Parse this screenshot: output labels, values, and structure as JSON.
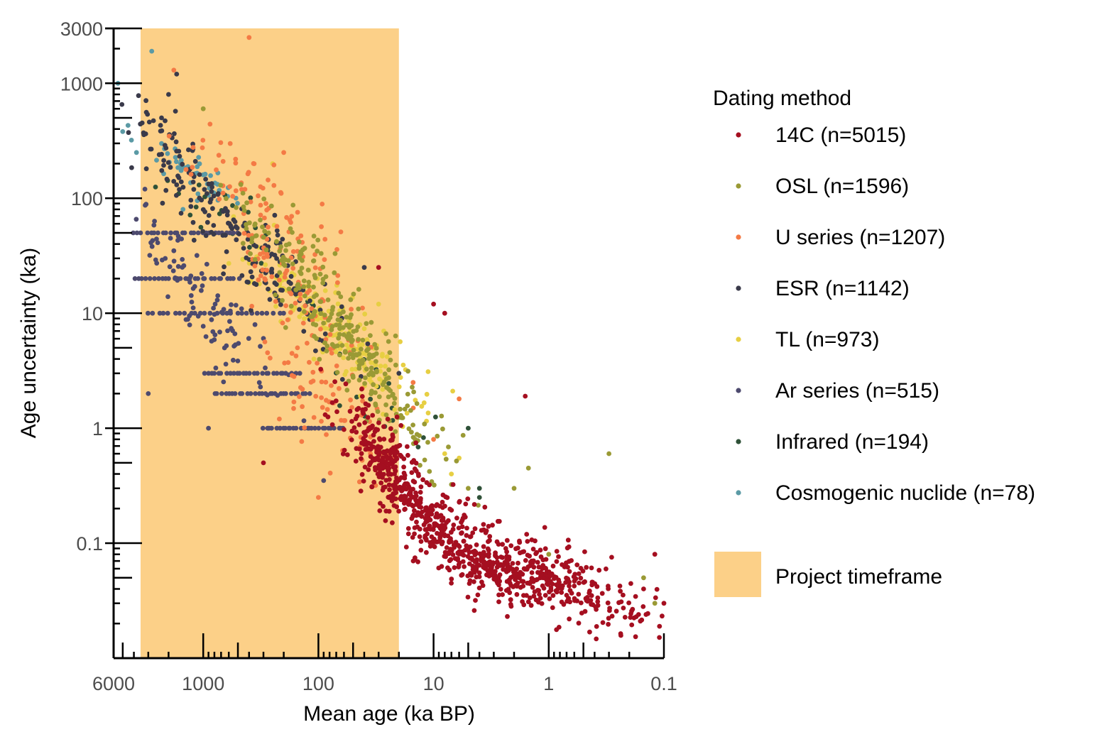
{
  "chart_data": {
    "type": "scatter",
    "xlabel": "Mean age (ka BP)",
    "ylabel": "Age uncertainty (ka)",
    "x_scale": "log",
    "x_reversed": true,
    "y_scale": "log",
    "xlim": [
      6000,
      0.1
    ],
    "ylim": [
      0.01,
      3000
    ],
    "x_ticks": [
      6000,
      1000,
      100,
      10,
      1,
      0.1
    ],
    "x_tick_labels": [
      "6000",
      "1000",
      "100",
      "10",
      "1",
      "0.1"
    ],
    "y_ticks": [
      3000,
      1000,
      100,
      10,
      1,
      0.1
    ],
    "y_tick_labels": [
      "3000",
      "1000",
      "100",
      "10",
      "1",
      "0.1"
    ],
    "grid": false,
    "legend_position": "right",
    "legend_title": "Dating method",
    "shaded_region": {
      "label": "Project timeframe",
      "x_from": 3500,
      "x_to": 20,
      "color": "#fcd088"
    },
    "series": [
      {
        "name": "14C (n=5015)",
        "color": "#a50f20",
        "n": 5015,
        "clusters": [
          {
            "x": 25,
            "y": 0.5,
            "spread_x": 0.2,
            "spread_y": 0.3
          },
          {
            "x": 10,
            "y": 0.15,
            "spread_x": 0.3,
            "spread_y": 0.3
          },
          {
            "x": 3,
            "y": 0.06,
            "spread_x": 0.35,
            "spread_y": 0.2
          },
          {
            "x": 0.8,
            "y": 0.05,
            "spread_x": 0.4,
            "spread_y": 0.25
          }
        ],
        "points": [
          [
            10,
            12
          ],
          [
            8,
            10
          ],
          [
            1.6,
            1.9
          ],
          [
            300,
            0.5
          ],
          [
            0.12,
            0.08
          ],
          [
            0.1,
            0.03
          ],
          [
            0.15,
            0.04
          ],
          [
            30,
            25
          ],
          [
            15,
            0.07
          ],
          [
            25,
            1.2
          ]
        ]
      },
      {
        "name": "OSL (n=1596)",
        "color": "#9a9a35",
        "n": 1596,
        "clusters": [
          {
            "x": 60,
            "y": 6,
            "spread_x": 0.25,
            "spread_y": 0.3
          },
          {
            "x": 25,
            "y": 2,
            "spread_x": 0.25,
            "spread_y": 0.35
          },
          {
            "x": 150,
            "y": 30,
            "spread_x": 0.3,
            "spread_y": 0.3
          }
        ],
        "points": [
          [
            1000,
            600
          ],
          [
            0.3,
            0.6
          ],
          [
            0.15,
            0.05
          ],
          [
            0.12,
            0.03
          ],
          [
            2,
            0.3
          ],
          [
            1.5,
            0.45
          ],
          [
            5,
            0.3
          ],
          [
            1,
            0.08
          ]
        ]
      },
      {
        "name": "U series (n=1207)",
        "color": "#f47a45",
        "n": 1207,
        "clusters": [
          {
            "x": 150,
            "y": 15,
            "spread_x": 0.35,
            "spread_y": 0.4
          },
          {
            "x": 80,
            "y": 1.5,
            "spread_x": 0.3,
            "spread_y": 0.35
          },
          {
            "x": 300,
            "y": 80,
            "spread_x": 0.35,
            "spread_y": 0.35
          }
        ],
        "points": [
          [
            400,
            2500
          ],
          [
            1800,
            1300
          ],
          [
            200,
            250
          ],
          [
            6,
            1.8
          ],
          [
            100,
            0.25
          ],
          [
            15,
            1.5
          ],
          [
            10,
            0.8
          ]
        ]
      },
      {
        "name": "ESR (n=1142)",
        "color": "#3a3a4a",
        "n": 1142,
        "clusters": [
          {
            "x": 1500,
            "y": 200,
            "spread_x": 0.25,
            "spread_y": 0.3
          },
          {
            "x": 600,
            "y": 60,
            "spread_x": 0.3,
            "spread_y": 0.3
          },
          {
            "x": 200,
            "y": 15,
            "spread_x": 0.3,
            "spread_y": 0.35
          }
        ],
        "points": [
          [
            2000,
            800
          ],
          [
            2300,
            500
          ],
          [
            1700,
            1200
          ],
          [
            40,
            25
          ],
          [
            20,
            3
          ]
        ]
      },
      {
        "name": "TL (n=973)",
        "color": "#e7cf43",
        "n": 973,
        "clusters": [
          {
            "x": 120,
            "y": 12,
            "spread_x": 0.3,
            "spread_y": 0.3
          },
          {
            "x": 40,
            "y": 4,
            "spread_x": 0.3,
            "spread_y": 0.3
          }
        ],
        "points": [
          [
            8,
            0.6
          ],
          [
            6,
            0.55
          ],
          [
            7,
            0.4
          ],
          [
            250,
            200
          ],
          [
            30,
            12
          ]
        ]
      },
      {
        "name": "Ar series (n=515)",
        "color": "#4d4a6e",
        "n": 515,
        "clusters": [
          {
            "x": 1600,
            "y": 20,
            "spread_x": 0.2,
            "spread_y": 0.4
          },
          {
            "x": 600,
            "y": 8,
            "spread_x": 0.3,
            "spread_y": 0.4
          }
        ],
        "rows": [
          {
            "y": 50,
            "x_from": 4000,
            "x_to": 500
          },
          {
            "y": 20,
            "x_from": 4000,
            "x_to": 500
          },
          {
            "y": 10,
            "x_from": 3000,
            "x_to": 200
          },
          {
            "y": 3,
            "x_from": 1000,
            "x_to": 150
          },
          {
            "y": 2,
            "x_from": 800,
            "x_to": 120
          },
          {
            "y": 1,
            "x_from": 300,
            "x_to": 60
          }
        ],
        "points": [
          [
            3000,
            2
          ],
          [
            900,
            1
          ],
          [
            90,
            0.35
          ]
        ]
      },
      {
        "name": "Infrared (n=194)",
        "color": "#2f5138",
        "n": 194,
        "clusters": [
          {
            "x": 40,
            "y": 2.5,
            "spread_x": 0.3,
            "spread_y": 0.35
          },
          {
            "x": 600,
            "y": 60,
            "spread_x": 0.3,
            "spread_y": 0.25
          }
        ],
        "points": [
          [
            5,
            1
          ],
          [
            4,
            0.25
          ],
          [
            4,
            0.3
          ]
        ]
      },
      {
        "name": "Cosmogenic nuclide (n=78)",
        "color": "#5b9aa5",
        "n": 78,
        "clusters": [
          {
            "x": 1300,
            "y": 170,
            "spread_x": 0.2,
            "spread_y": 0.15
          }
        ],
        "points": [
          [
            5500,
            1000
          ],
          [
            2800,
            1900
          ],
          [
            4500,
            430
          ],
          [
            5000,
            380
          ],
          [
            4200,
            320
          ],
          [
            3800,
            250
          ],
          [
            1000,
            160
          ],
          [
            1500,
            80
          ]
        ]
      }
    ]
  }
}
